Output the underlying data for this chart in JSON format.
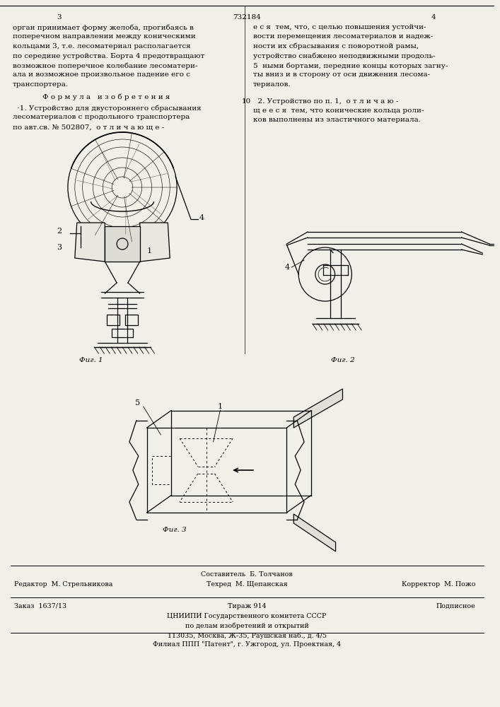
{
  "page_width": 7.07,
  "page_height": 10.0,
  "bg_color": "#f0efe8",
  "text_left": [
    "орган принимает форму желоба, прогибаясь в",
    "поперечном направлении между коническими",
    "кольцами 3, т.е. лесоматериал располагается",
    "по середине устройства. Борта 4 предотвращают",
    "возможное поперечное колебание лесоматери-",
    "ала и возможное произвольное падение его с",
    "транспортера."
  ],
  "text_formula_header": "    Ф о р м у л а   и з о б р е т е н и я",
  "text_formula": [
    "  ·1. Устройство для двустороннего сбрасывания",
    "лесоматериалов с продольного транспортера",
    "по авт.св. № 502807,  о т л и ч а ю щ е -"
  ],
  "text_right": [
    "е с я  тем, что, с целью повышения устойчи-",
    "вости перемещения лесоматериалов и надеж-",
    "ности их сбрасывания с поворотной рамы,",
    "устройство снабжено неподвижными продоль-",
    "5  ными бортами, передние концы которых загну-",
    "ты вниз и в сторону от оси движения лесома-",
    "териалов."
  ],
  "text_right2_linenum": "10",
  "text_right2": [
    "  2. Устройство по п. 1,  о т л и ч а ю -",
    "щ е е с я  тем, что конические кольца роли-",
    "ков выполнены из эластичного материала."
  ],
  "fig1_caption": "Фиг. 1",
  "fig2_caption": "Фиг. 2",
  "fig3_caption": "Фиг. 3",
  "footer_editor": "Редактор  М. Стрельникова",
  "footer_composer": "Составитель  Б. Толчанов",
  "footer_techred": "Техред  М. Щепанская",
  "footer_corrector": "Корректор  М. Пожо",
  "footer_order": "Заказ  1637/13",
  "footer_tirazh": "Тираж 914",
  "footer_podpisnoe": "Подписное",
  "footer_org1": "ЦНИИПИ Государственного комитета СССР",
  "footer_org2": "по делам изобретений и открытий",
  "footer_org3": "113035, Москва, Ж-35, Раушская наб., д. 4/5",
  "footer_filial": "Филиал ППП \"Патент\", г. Ужгород, ул. Проектная, 4",
  "page_num_left": "3",
  "page_num_center": "732184",
  "page_num_right": "4"
}
